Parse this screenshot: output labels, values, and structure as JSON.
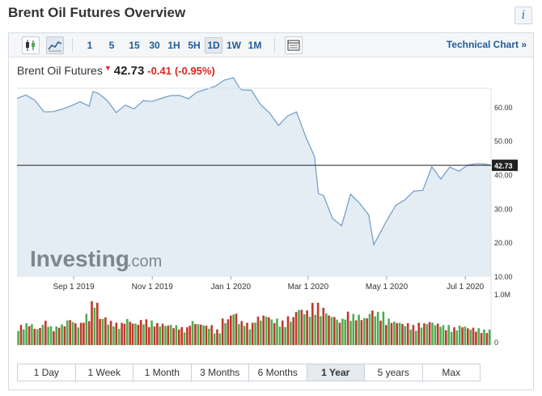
{
  "page": {
    "title": "Brent Oil Futures Overview"
  },
  "toolbar": {
    "intervals": [
      "1",
      "5",
      "15",
      "30",
      "1H",
      "5H",
      "1D",
      "1W",
      "1M"
    ],
    "active_interval": "1D",
    "technical_chart_label": "Technical Chart »"
  },
  "quote": {
    "name": "Brent Oil Futures",
    "arrow": "▼",
    "price": "42.73",
    "change": "-0.41",
    "change_pct": "(-0.95%)"
  },
  "watermark": {
    "brand": "Investing",
    "suffix": ".com"
  },
  "ranges": [
    "1 Day",
    "1 Week",
    "1 Month",
    "3 Months",
    "6 Months",
    "1 Year",
    "5 years",
    "Max"
  ],
  "active_range": "1 Year",
  "colors": {
    "price_line": "#6d9bc9",
    "price_fill": "#e4edf4",
    "volume_up": "#4caf50",
    "volume_down": "#c0392b",
    "current_price_line": "#222222",
    "link": "#1f5b99",
    "negative": "#d9261c"
  },
  "chart_data": {
    "type": "area",
    "x_ticks": [
      "Sep 1 2019",
      "Nov 1 2019",
      "Jan 1 2020",
      "Mar 1 2020",
      "May 1 2020",
      "Jul 1 2020"
    ],
    "y_ticks": [
      "60.00",
      "50.00",
      "40.00",
      "30.00",
      "20.00",
      "10.00"
    ],
    "ylim": [
      10,
      65
    ],
    "current_price": 42.73,
    "current_price_label": "42.73",
    "volume_ticks": [
      "1.0M",
      "0"
    ],
    "x": [
      "2019-07-19",
      "2019-07-26",
      "2019-08-02",
      "2019-08-09",
      "2019-08-16",
      "2019-08-23",
      "2019-08-30",
      "2019-09-06",
      "2019-09-13",
      "2019-09-16",
      "2019-09-20",
      "2019-09-27",
      "2019-10-04",
      "2019-10-11",
      "2019-10-18",
      "2019-10-25",
      "2019-11-01",
      "2019-11-08",
      "2019-11-15",
      "2019-11-22",
      "2019-11-29",
      "2019-12-06",
      "2019-12-13",
      "2019-12-20",
      "2019-12-27",
      "2020-01-03",
      "2020-01-08",
      "2020-01-10",
      "2020-01-17",
      "2020-01-24",
      "2020-01-31",
      "2020-02-07",
      "2020-02-14",
      "2020-02-21",
      "2020-02-28",
      "2020-03-06",
      "2020-03-09",
      "2020-03-13",
      "2020-03-20",
      "2020-03-27",
      "2020-04-03",
      "2020-04-10",
      "2020-04-17",
      "2020-04-21",
      "2020-04-24",
      "2020-05-01",
      "2020-05-08",
      "2020-05-15",
      "2020-05-22",
      "2020-05-29",
      "2020-06-05",
      "2020-06-12",
      "2020-06-19",
      "2020-06-26",
      "2020-07-03",
      "2020-07-10",
      "2020-07-17",
      "2020-07-21"
    ],
    "values": [
      62.5,
      63.5,
      61.9,
      58.5,
      58.6,
      59.3,
      60.3,
      61.5,
      60.2,
      64.5,
      64.0,
      61.9,
      58.3,
      60.5,
      59.4,
      61.8,
      61.6,
      62.5,
      63.3,
      63.4,
      62.4,
      64.4,
      65.2,
      66.1,
      67.9,
      68.6,
      65.4,
      65.0,
      64.9,
      60.7,
      58.2,
      54.5,
      57.3,
      58.5,
      51.3,
      45.3,
      34.4,
      33.8,
      27.0,
      24.9,
      34.2,
      31.5,
      28.1,
      19.3,
      21.4,
      26.4,
      30.9,
      32.5,
      35.1,
      35.3,
      42.3,
      38.7,
      42.2,
      41.0,
      42.8,
      43.2,
      43.1,
      42.73
    ],
    "volume_relative": [
      0.45,
      0.5,
      0.4,
      0.55,
      0.42,
      0.48,
      0.6,
      0.5,
      0.7,
      1.0,
      0.65,
      0.55,
      0.5,
      0.6,
      0.52,
      0.58,
      0.55,
      0.5,
      0.48,
      0.45,
      0.4,
      0.55,
      0.5,
      0.45,
      0.35,
      0.6,
      0.75,
      0.55,
      0.5,
      0.65,
      0.7,
      0.6,
      0.55,
      0.65,
      0.85,
      0.8,
      0.95,
      0.85,
      0.7,
      0.6,
      0.75,
      0.7,
      0.65,
      0.8,
      0.75,
      0.6,
      0.55,
      0.5,
      0.45,
      0.5,
      0.55,
      0.5,
      0.45,
      0.4,
      0.45,
      0.4,
      0.38,
      0.35
    ],
    "volume_direction": [
      "up",
      "down",
      "down",
      "down",
      "up",
      "up",
      "up",
      "up",
      "down",
      "up",
      "down",
      "down",
      "down",
      "up",
      "down",
      "up",
      "down",
      "up",
      "up",
      "up",
      "down",
      "up",
      "up",
      "up",
      "up",
      "up",
      "down",
      "down",
      "down",
      "down",
      "down",
      "down",
      "up",
      "up",
      "down",
      "down",
      "down",
      "down",
      "down",
      "down",
      "up",
      "down",
      "down",
      "down",
      "up",
      "up",
      "up",
      "up",
      "up",
      "up",
      "up",
      "down",
      "up",
      "down",
      "up",
      "up",
      "down",
      "down"
    ]
  }
}
